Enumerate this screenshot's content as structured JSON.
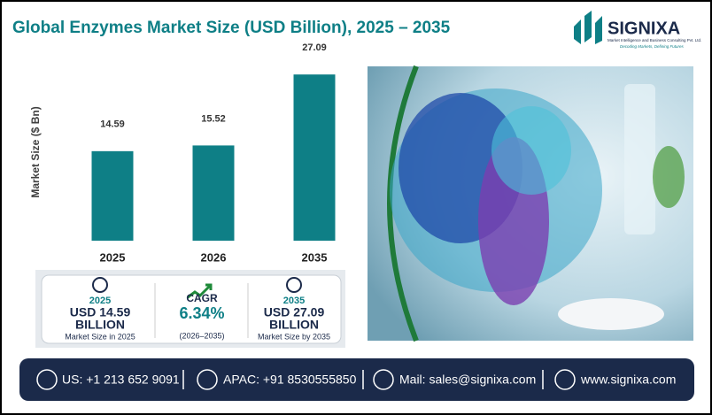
{
  "chart_data": {
    "type": "bar",
    "title": "Global Enzymes Market Size (USD Billion), 2025 – 2035",
    "y_label": "Market Size ($ Bn)",
    "categories": [
      "2025",
      "2026",
      "2035"
    ],
    "values": [
      14.59,
      15.52,
      27.09
    ],
    "color": "#0e7f86",
    "ylim": [
      0,
      30
    ]
  },
  "logo": {
    "name": "SIGNIXA",
    "tagline": "Market Intelligence and Business Consulting Pvt. Ltd.",
    "motto": "Decoding Markets, Defining Futures"
  },
  "stats": [
    {
      "heading": "2025",
      "value": "USD 14.59",
      "unit": "BILLION",
      "caption": "Market Size in 2025"
    },
    {
      "heading": "CAGR",
      "value": "6.34%",
      "caption": "(2026–2035)"
    },
    {
      "heading": "2035",
      "value": "USD 27.09",
      "unit": "BILLION",
      "caption": "Market Size by 2035"
    }
  ],
  "footer": [
    "US: +1 213 652 9091",
    "APAC: +91 8530555850",
    "Mail: sales@signixa.com",
    "www.signixa.com"
  ]
}
